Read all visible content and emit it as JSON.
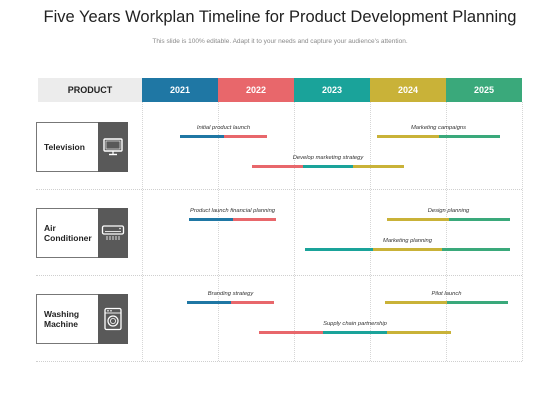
{
  "title": "Five Years Workplan Timeline for Product Development Planning",
  "subtitle": "This slide is 100% editable. Adapt it to your needs and capture your audience's attention.",
  "header": {
    "product_label": "PRODUCT",
    "years": [
      "2021",
      "2022",
      "2023",
      "2024",
      "2025"
    ],
    "year_colors": [
      "#1f77a4",
      "#e8676b",
      "#1aa39a",
      "#c9b238",
      "#3aa97b"
    ]
  },
  "rows": [
    {
      "label": "Television",
      "icon": "television-icon",
      "bars": [
        {
          "label": "Initial product launch",
          "segments": [
            "#1f77a4",
            "#e8676b"
          ]
        },
        {
          "label": "Marketing campaigns",
          "segments": [
            "#c9b238",
            "#3aa97b"
          ]
        },
        {
          "label": "Develop marketing strategy",
          "segments": [
            "#e8676b",
            "#1aa39a",
            "#c9b238"
          ]
        }
      ]
    },
    {
      "label": "Air Conditioner",
      "icon": "air-conditioner-icon",
      "bars": [
        {
          "label": "Product launch financial planning",
          "segments": [
            "#1f77a4",
            "#e8676b"
          ]
        },
        {
          "label": "Design planning",
          "segments": [
            "#c9b238",
            "#3aa97b"
          ]
        },
        {
          "label": "Marketing planning",
          "segments": [
            "#1aa39a",
            "#c9b238",
            "#3aa97b"
          ]
        }
      ]
    },
    {
      "label": "Washing Machine",
      "icon": "washing-machine-icon",
      "bars": [
        {
          "label": "Branding strategy",
          "segments": [
            "#1f77a4",
            "#e8676b"
          ]
        },
        {
          "label": "Pilot launch",
          "segments": [
            "#c9b238",
            "#3aa97b"
          ]
        },
        {
          "label": "Supply chain partnership",
          "segments": [
            "#e8676b",
            "#1aa39a",
            "#c9b238"
          ]
        }
      ]
    }
  ]
}
